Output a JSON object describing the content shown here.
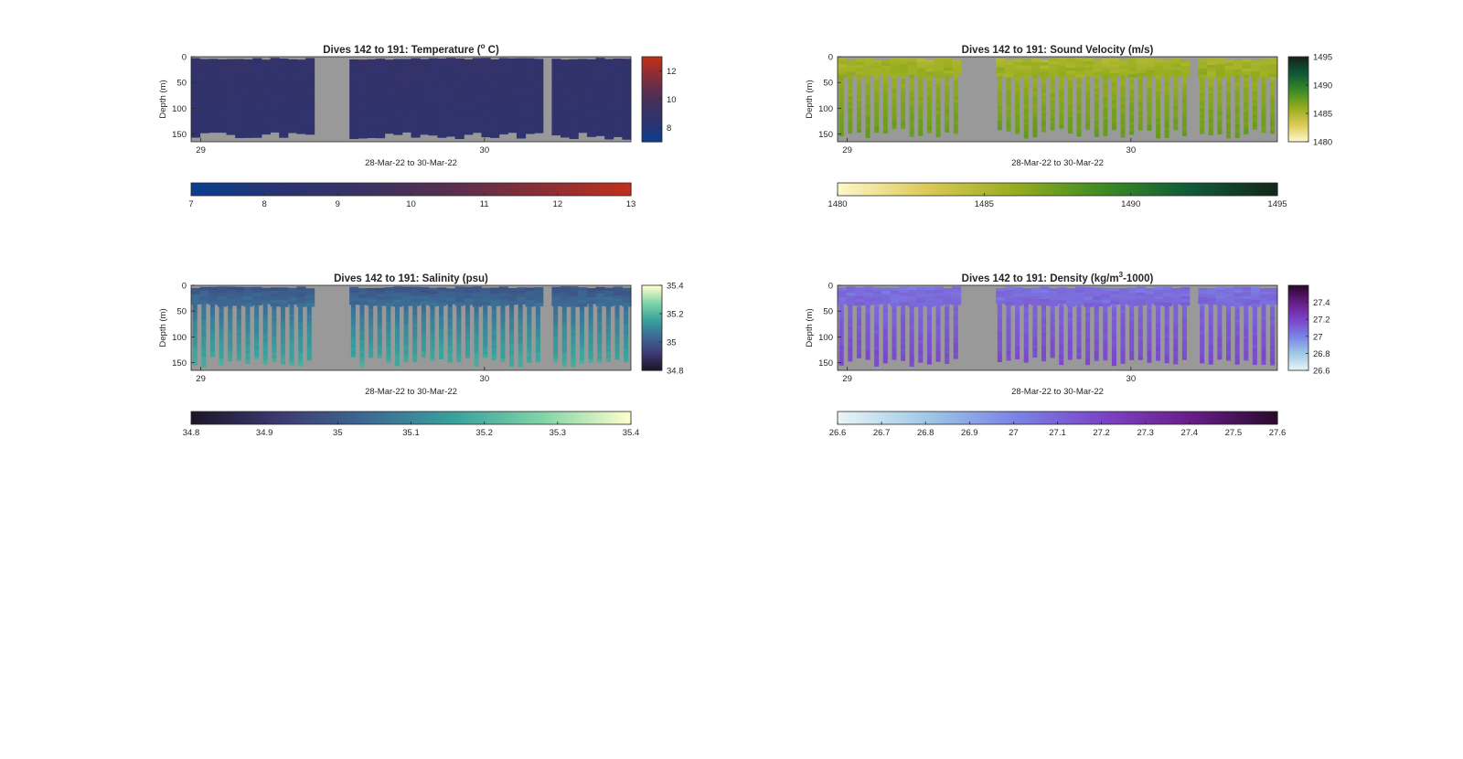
{
  "figure": {
    "panels": [
      {
        "id": "temperature",
        "title": "Dives 142 to 191: Temperature (",
        "title_sup": "o",
        "title_tail": " C)",
        "ylabel": "Depth (m)",
        "xlabel": "28-Mar-22 to 30-Mar-22",
        "y_ticks": [
          "0",
          "50",
          "100",
          "150"
        ],
        "x_ticks": [
          "29",
          "30"
        ],
        "colorbar_ticks": [
          "8",
          "10",
          "12"
        ],
        "hbar_ticks": [
          "7",
          "8",
          "9",
          "10",
          "11",
          "12",
          "13"
        ]
      },
      {
        "id": "sound-velocity",
        "title": "Dives 142 to 191: Sound Velocity (m/s)",
        "title_sup": "",
        "title_tail": "",
        "ylabel": "Depth (m)",
        "xlabel": "28-Mar-22 to 30-Mar-22",
        "y_ticks": [
          "0",
          "50",
          "100",
          "150"
        ],
        "x_ticks": [
          "29",
          "30"
        ],
        "colorbar_ticks": [
          "1480",
          "1485",
          "1490",
          "1495"
        ],
        "hbar_ticks": [
          "1480",
          "1485",
          "1490",
          "1495"
        ]
      },
      {
        "id": "salinity",
        "title": "Dives 142 to 191: Salinity (psu)",
        "title_sup": "",
        "title_tail": "",
        "ylabel": "Depth (m)",
        "xlabel": "28-Mar-22 to 30-Mar-22",
        "y_ticks": [
          "0",
          "50",
          "100",
          "150"
        ],
        "x_ticks": [
          "29",
          "30"
        ],
        "colorbar_ticks": [
          "34.8",
          "35",
          "35.2",
          "35.4"
        ],
        "hbar_ticks": [
          "34.8",
          "34.9",
          "35",
          "35.1",
          "35.2",
          "35.3",
          "35.4"
        ]
      },
      {
        "id": "density",
        "title": "Dives 142 to 191: Density (kg/m",
        "title_sup": "3",
        "title_tail": "-1000)",
        "ylabel": "Depth (m)",
        "xlabel": "28-Mar-22 to 30-Mar-22",
        "y_ticks": [
          "0",
          "50",
          "100",
          "150"
        ],
        "x_ticks": [
          "29",
          "30"
        ],
        "colorbar_ticks": [
          "26.6",
          "26.8",
          "27",
          "27.2",
          "27.4"
        ],
        "hbar_ticks": [
          "26.6",
          "26.7",
          "26.8",
          "26.9",
          "27",
          "27.1",
          "27.2",
          "27.3",
          "27.4",
          "27.5",
          "27.6"
        ]
      }
    ]
  },
  "chart_data": [
    {
      "type": "heatmap",
      "title": "Dives 142 to 191: Temperature (o C)",
      "xlabel": "28-Mar-22 to 30-Mar-22",
      "ylabel": "Depth (m)",
      "x_tick_labels": [
        "29",
        "30"
      ],
      "y_tick_labels": [
        "0",
        "50",
        "100",
        "150"
      ],
      "ylim": [
        165,
        0
      ],
      "value_range": [
        7,
        13
      ],
      "colorbar_ticks": [
        8,
        10,
        12
      ],
      "colormap": [
        "#0a3f8f",
        "#2a3373",
        "#3a3262",
        "#5a2f4e",
        "#8a2f36",
        "#c0301a"
      ],
      "missing_color": "#999999",
      "dives": 50,
      "gaps": [
        [
          0.277,
          0.358
        ],
        [
          0.801,
          0.82
        ]
      ],
      "profile": {
        "surface": 8.9,
        "bottom": 8.6
      },
      "max_depth": [
        140,
        160
      ],
      "continuous": true
    },
    {
      "type": "heatmap",
      "title": "Dives 142 to 191: Sound Velocity (m/s)",
      "xlabel": "28-Mar-22 to 30-Mar-22",
      "ylabel": "Depth (m)",
      "x_tick_labels": [
        "29",
        "30"
      ],
      "y_tick_labels": [
        "0",
        "50",
        "100",
        "150"
      ],
      "ylim": [
        165,
        0
      ],
      "value_range": [
        1480,
        1495
      ],
      "colorbar_ticks": [
        1480,
        1485,
        1490,
        1495
      ],
      "colormap": [
        "#fdf7c8",
        "#dcc957",
        "#98ad1f",
        "#3e8c22",
        "#0f5c38",
        "#16261a"
      ],
      "missing_color": "#999999",
      "dives": 50,
      "gaps": [
        [
          0.277,
          0.358
        ],
        [
          0.801,
          0.82
        ]
      ],
      "profile": {
        "surface": 1485.2,
        "bottom": 1487.8
      },
      "max_depth": [
        130,
        158
      ],
      "continuous": false
    },
    {
      "type": "heatmap",
      "title": "Dives 142 to 191: Salinity (psu)",
      "xlabel": "28-Mar-22 to 30-Mar-22",
      "ylabel": "Depth (m)",
      "x_tick_labels": [
        "29",
        "30"
      ],
      "y_tick_labels": [
        "0",
        "50",
        "100",
        "150"
      ],
      "ylim": [
        165,
        0
      ],
      "value_range": [
        34.8,
        35.4
      ],
      "colorbar_ticks": [
        34.8,
        35,
        35.2,
        35.4
      ],
      "colormap": [
        "#1c1627",
        "#3d3a73",
        "#3c6a94",
        "#3aa19c",
        "#7fd4a8",
        "#fdfdcc"
      ],
      "missing_color": "#999999",
      "dives": 50,
      "gaps": [
        [
          0.277,
          0.358
        ],
        [
          0.801,
          0.82
        ]
      ],
      "profile": {
        "surface": 34.98,
        "bottom": 35.2
      },
      "max_depth": [
        130,
        158
      ],
      "continuous": false
    },
    {
      "type": "heatmap",
      "title": "Dives 142 to 191: Density (kg/m3-1000)",
      "xlabel": "28-Mar-22 to 30-Mar-22",
      "ylabel": "Depth (m)",
      "x_tick_labels": [
        "29",
        "30"
      ],
      "y_tick_labels": [
        "0",
        "50",
        "100",
        "150"
      ],
      "ylim": [
        165,
        0
      ],
      "value_range": [
        26.6,
        27.6
      ],
      "colorbar_ticks": [
        26.6,
        26.8,
        27,
        27.2,
        27.4
      ],
      "colormap": [
        "#e8f4f6",
        "#9fc8e6",
        "#7b84e6",
        "#7b45c8",
        "#6a1e8a",
        "#2b0a2e"
      ],
      "missing_color": "#999999",
      "dives": 50,
      "gaps": [
        [
          0.277,
          0.358
        ],
        [
          0.801,
          0.82
        ]
      ],
      "profile": {
        "surface": 27.05,
        "bottom": 27.2
      },
      "max_depth": [
        130,
        158
      ],
      "continuous": false
    }
  ]
}
